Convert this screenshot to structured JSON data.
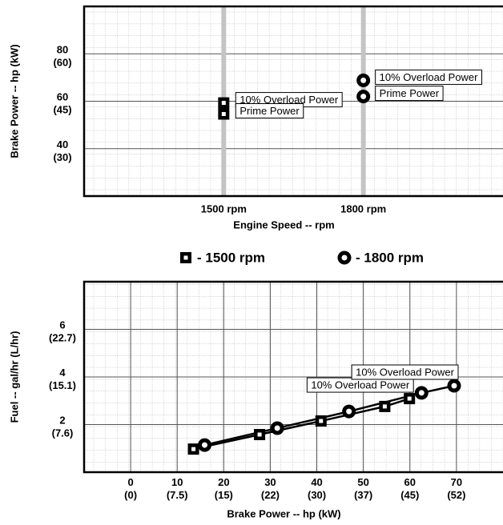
{
  "chart_data": [
    {
      "type": "scatter",
      "xlabel": "Engine Speed -- rpm",
      "ylabel": "Brake Power -- hp (kW)",
      "xlim": [
        1200,
        2100
      ],
      "ylim": [
        20,
        100
      ],
      "xticks": [
        {
          "value": 1500,
          "label": "1500 rpm"
        },
        {
          "value": 1800,
          "label": "1800 rpm"
        }
      ],
      "yticks": [
        {
          "value": 40,
          "label": "40\n(30)"
        },
        {
          "value": 60,
          "label": "60\n(45)"
        },
        {
          "value": 80,
          "label": "80\n(60)"
        }
      ],
      "grid": true,
      "series": [
        {
          "name": "- 1500 rpm",
          "marker": "square",
          "color": "#000000",
          "x": [
            1500,
            1500
          ],
          "values": [
            59.3,
            54.6
          ],
          "point_labels": [
            "10% Overload Power",
            "Prime Power"
          ]
        },
        {
          "name": "- 1800 rpm",
          "marker": "circle",
          "color": "#000000",
          "x": [
            1800,
            1800
          ],
          "values": [
            68.8,
            62
          ],
          "point_labels": [
            "10% Overload Power",
            "Prime Power"
          ]
        }
      ]
    },
    {
      "type": "line",
      "xlabel": "Brake Power -- hp (kW)",
      "ylabel": "Fuel -- gal/hr (L/hr)",
      "xlim": [
        -10,
        80
      ],
      "ylim": [
        0,
        8
      ],
      "xticks": [
        {
          "value": 0,
          "label": "0\n(0)"
        },
        {
          "value": 10,
          "label": "10\n(7.5)"
        },
        {
          "value": 20,
          "label": "20\n(15)"
        },
        {
          "value": 30,
          "label": "30\n(22)"
        },
        {
          "value": 40,
          "label": "40\n(30)"
        },
        {
          "value": 50,
          "label": "50\n(37)"
        },
        {
          "value": 60,
          "label": "60\n(45)"
        },
        {
          "value": 70,
          "label": "70\n(52)"
        }
      ],
      "yticks": [
        {
          "value": 2,
          "label": "2\n(7.6)"
        },
        {
          "value": 4,
          "label": "4\n(15.1)"
        },
        {
          "value": 6,
          "label": "6\n(22.7)"
        }
      ],
      "grid": true,
      "series": [
        {
          "name": "- 1500 rpm",
          "marker": "square",
          "color": "#000000",
          "x": [
            13.5,
            27.7,
            40.9,
            54.6,
            59.9
          ],
          "values": [
            0.97,
            1.58,
            2.15,
            2.76,
            3.09
          ],
          "point_labels": [
            null,
            null,
            null,
            null,
            "10% Overload Power"
          ]
        },
        {
          "name": "- 1800 rpm",
          "marker": "circle",
          "color": "#000000",
          "x": [
            15.9,
            31.5,
            46.9,
            62.5,
            69.5
          ],
          "values": [
            1.14,
            1.85,
            2.55,
            3.33,
            3.63
          ],
          "point_labels": [
            null,
            null,
            null,
            null,
            "10% Overload Power"
          ]
        }
      ]
    }
  ]
}
